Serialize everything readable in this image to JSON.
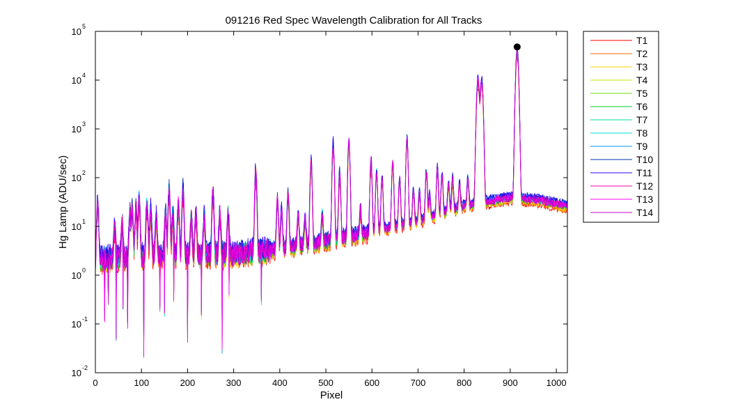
{
  "chart_data": {
    "type": "line",
    "title": "091216 Red Spec Wavelength Calibration for All Tracks",
    "xlabel": "Pixel",
    "ylabel": "Hg Lamp (ADU/sec)",
    "xlim": [
      0,
      1024
    ],
    "ylim": [
      0.01,
      100000
    ],
    "yscale": "log",
    "grid": false,
    "legend_position": "outside-right",
    "x_ticks": [
      "0",
      "100",
      "200",
      "300",
      "400",
      "500",
      "600",
      "700",
      "800",
      "900",
      "1000"
    ],
    "y_ticks": [
      {
        "base": "10",
        "exp": "-2"
      },
      {
        "base": "10",
        "exp": "-1"
      },
      {
        "base": "10",
        "exp": "0"
      },
      {
        "base": "10",
        "exp": "1"
      },
      {
        "base": "10",
        "exp": "2"
      },
      {
        "base": "10",
        "exp": "3"
      },
      {
        "base": "10",
        "exp": "4"
      },
      {
        "base": "10",
        "exp": "5"
      }
    ],
    "marker": {
      "x": 915,
      "y": 48000,
      "color": "#000000"
    },
    "baseline": [
      [
        0,
        2.2
      ],
      [
        100,
        2.5
      ],
      [
        200,
        2.6
      ],
      [
        300,
        2.8
      ],
      [
        400,
        3.5
      ],
      [
        500,
        5
      ],
      [
        600,
        8
      ],
      [
        700,
        13
      ],
      [
        800,
        27
      ],
      [
        900,
        40
      ],
      [
        960,
        36
      ],
      [
        1024,
        27
      ]
    ],
    "peaks": [
      [
        5,
        25
      ],
      [
        42,
        7
      ],
      [
        58,
        9
      ],
      [
        75,
        16
      ],
      [
        80,
        18
      ],
      [
        88,
        20
      ],
      [
        95,
        30
      ],
      [
        112,
        25
      ],
      [
        120,
        18
      ],
      [
        132,
        12
      ],
      [
        152,
        18
      ],
      [
        160,
        50
      ],
      [
        168,
        14
      ],
      [
        180,
        25
      ],
      [
        190,
        50
      ],
      [
        208,
        12
      ],
      [
        218,
        14
      ],
      [
        236,
        12
      ],
      [
        255,
        45
      ],
      [
        270,
        14
      ],
      [
        288,
        14
      ],
      [
        348,
        120
      ],
      [
        395,
        30
      ],
      [
        404,
        18
      ],
      [
        418,
        40
      ],
      [
        440,
        15
      ],
      [
        455,
        10
      ],
      [
        468,
        200
      ],
      [
        492,
        12
      ],
      [
        516,
        450
      ],
      [
        530,
        110
      ],
      [
        550,
        550
      ],
      [
        575,
        15
      ],
      [
        598,
        200
      ],
      [
        610,
        120
      ],
      [
        622,
        90
      ],
      [
        645,
        190
      ],
      [
        660,
        85
      ],
      [
        676,
        600
      ],
      [
        690,
        45
      ],
      [
        703,
        38
      ],
      [
        718,
        120
      ],
      [
        725,
        30
      ],
      [
        742,
        140
      ],
      [
        752,
        100
      ],
      [
        766,
        55
      ],
      [
        775,
        75
      ],
      [
        790,
        50
      ],
      [
        808,
        70
      ],
      [
        830,
        10000
      ],
      [
        838,
        10000
      ],
      [
        915,
        40000
      ]
    ],
    "dips": [
      [
        20,
        0.12
      ],
      [
        28,
        0.3
      ],
      [
        45,
        0.05
      ],
      [
        60,
        0.2
      ],
      [
        70,
        0.1
      ],
      [
        105,
        0.025
      ],
      [
        140,
        0.2
      ],
      [
        150,
        0.15
      ],
      [
        170,
        0.3
      ],
      [
        200,
        0.05
      ],
      [
        230,
        0.15
      ],
      [
        275,
        0.03
      ],
      [
        290,
        0.4
      ],
      [
        360,
        0.3
      ]
    ],
    "series": [
      {
        "name": "T1",
        "color": "#ff0000",
        "scale": 0.78
      },
      {
        "name": "T2",
        "color": "#ff6600",
        "scale": 0.82
      },
      {
        "name": "T3",
        "color": "#ffcc00",
        "scale": 0.85
      },
      {
        "name": "T4",
        "color": "#c8e600",
        "scale": 0.88
      },
      {
        "name": "T5",
        "color": "#66dd00",
        "scale": 0.92
      },
      {
        "name": "T6",
        "color": "#00d020",
        "scale": 0.95
      },
      {
        "name": "T7",
        "color": "#00e0a0",
        "scale": 0.98
      },
      {
        "name": "T8",
        "color": "#00dcdc",
        "scale": 1.02
      },
      {
        "name": "T9",
        "color": "#0090ff",
        "scale": 1.06
      },
      {
        "name": "T10",
        "color": "#0030b0",
        "scale": 1.1
      },
      {
        "name": "T11",
        "color": "#3300ff",
        "scale": 1.12
      },
      {
        "name": "T12",
        "color": "#ff00aa",
        "scale": 1.0
      },
      {
        "name": "T13",
        "color": "#ff00ff",
        "scale": 0.96
      },
      {
        "name": "T14",
        "color": "#cc00cc",
        "scale": 0.93
      }
    ]
  }
}
